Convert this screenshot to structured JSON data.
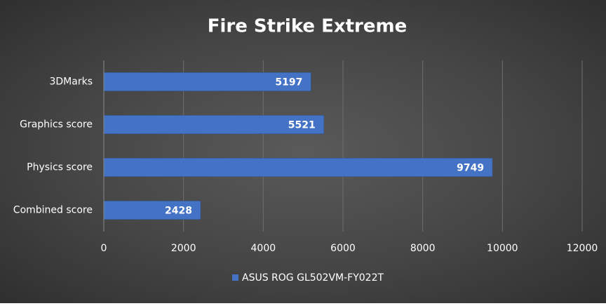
{
  "chart_data": {
    "type": "bar",
    "orientation": "horizontal",
    "title": "Fire Strike Extreme",
    "categories": [
      "3DMarks",
      "Graphics score",
      "Physics score",
      "Combined score"
    ],
    "series": [
      {
        "name": "ASUS ROG GL502VM-FY022T",
        "color": "#4472c4",
        "values": [
          5197,
          5521,
          9749,
          2428
        ]
      }
    ],
    "xlim": [
      0,
      12000
    ],
    "xticks": [
      0,
      2000,
      4000,
      6000,
      8000,
      10000,
      12000
    ],
    "grid": true,
    "legend": "bottom",
    "data_labels": true
  }
}
